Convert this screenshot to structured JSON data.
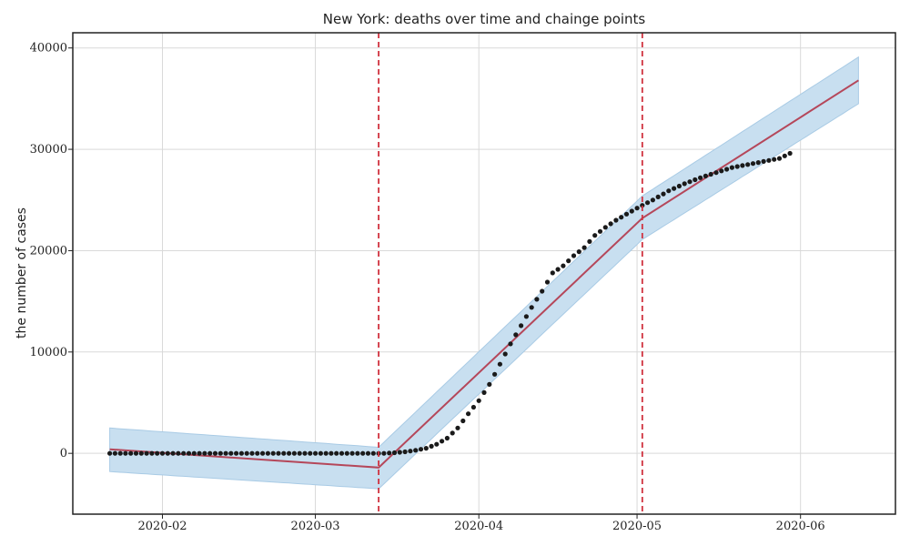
{
  "chart_data": {
    "type": "line",
    "title": "New York: deaths over time and chainge points",
    "xlabel": "",
    "ylabel": "the number of cases",
    "x_ticks": [
      "2020-02",
      "2020-03",
      "2020-04",
      "2020-05",
      "2020-06"
    ],
    "y_ticks": [
      "0",
      "10000",
      "20000",
      "30000",
      "40000"
    ],
    "ylim": [
      -6000,
      41500
    ],
    "xlim": [
      "2020-01-15",
      "2020-06-19"
    ],
    "grid": true,
    "colors": {
      "observed": "#1a1a1a",
      "trend": "#b5475a",
      "interval_fill": "#c8dff0",
      "interval_edge": "#a9cbe5",
      "changepoint": "#d0323f"
    },
    "changepoints": [
      "2020-03-13",
      "2020-05-02"
    ],
    "trend": {
      "x": [
        "2020-01-22",
        "2020-03-13",
        "2020-05-02",
        "2020-06-12"
      ],
      "y": [
        400,
        -1400,
        23200,
        36800
      ]
    },
    "interval": {
      "x": [
        "2020-01-22",
        "2020-03-13",
        "2020-05-02",
        "2020-06-12"
      ],
      "upper": [
        2500,
        600,
        25400,
        39100
      ],
      "lower": [
        -1800,
        -3500,
        21100,
        34500
      ]
    },
    "observed": {
      "x": [
        "2020-03-12",
        "2020-03-14",
        "2020-03-16",
        "2020-03-18",
        "2020-03-20",
        "2020-03-22",
        "2020-03-24",
        "2020-03-26",
        "2020-03-28",
        "2020-03-30",
        "2020-04-01",
        "2020-04-03",
        "2020-04-05",
        "2020-04-07",
        "2020-04-09",
        "2020-04-11",
        "2020-04-13",
        "2020-04-15",
        "2020-04-17",
        "2020-04-19",
        "2020-04-21",
        "2020-04-23",
        "2020-04-25",
        "2020-04-27",
        "2020-04-29",
        "2020-05-01",
        "2020-05-04",
        "2020-05-07",
        "2020-05-10",
        "2020-05-13",
        "2020-05-16",
        "2020-05-19",
        "2020-05-22",
        "2020-05-25",
        "2020-05-28",
        "2020-05-30"
      ],
      "y": [
        0,
        0,
        60,
        150,
        300,
        500,
        900,
        1500,
        2500,
        3900,
        5200,
        6800,
        8800,
        10800,
        12600,
        14400,
        16000,
        17800,
        18500,
        19500,
        20300,
        21500,
        22300,
        23000,
        23600,
        24200,
        25000,
        25900,
        26600,
        27200,
        27700,
        28200,
        28500,
        28800,
        29100,
        29600
      ]
    }
  }
}
